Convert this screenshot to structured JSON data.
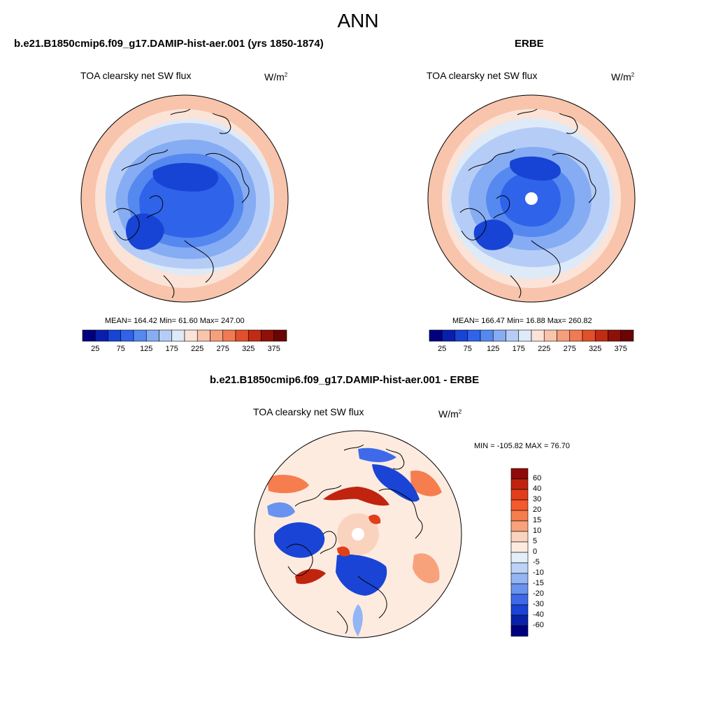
{
  "page_title": "ANN",
  "panels": [
    {
      "title": "b.e21.B1850cmip6.f09_g17.DAMIP-hist-aer.001 (yrs 1850-1874)",
      "variable": "TOA clearsky net SW flux",
      "units_base": "W/m",
      "units_exp": "2",
      "stats": "MEAN= 164.42  Min=  61.60  Max= 247.00",
      "colorbar_labels": [
        "25",
        "75",
        "125",
        "175",
        "225",
        "275",
        "325",
        "375"
      ]
    },
    {
      "title": "ERBE",
      "variable": "TOA clearsky net SW flux",
      "units_base": "W/m",
      "units_exp": "2",
      "stats": "MEAN= 166.47  Min=  16.88  Max= 260.82",
      "colorbar_labels": [
        "25",
        "75",
        "125",
        "175",
        "225",
        "275",
        "325",
        "375"
      ]
    },
    {
      "title": "b.e21.B1850cmip6.f09_g17.DAMIP-hist-aer.001 - ERBE",
      "variable": "TOA clearsky net SW flux",
      "units_base": "W/m",
      "units_exp": "2",
      "stats": "MIN = -105.82 MAX =  76.70",
      "colorbar_labels": [
        "60",
        "40",
        "30",
        "20",
        "15",
        "10",
        "5",
        "0",
        "-5",
        "-10",
        "-15",
        "-20",
        "-30",
        "-40",
        "-60"
      ]
    }
  ],
  "chart_data": [
    {
      "type": "heatmap",
      "projection": "north-polar-stereographic",
      "title": "TOA clearsky net SW flux",
      "units": "W/m^2",
      "mean": 164.42,
      "min": 61.6,
      "max": 247.0,
      "levels": [
        25,
        50,
        75,
        100,
        125,
        150,
        175,
        200,
        225,
        250,
        275,
        300,
        325,
        350,
        375
      ],
      "colors": [
        "#00007f",
        "#0a1eae",
        "#1744d4",
        "#2f63ea",
        "#5589f0",
        "#86acf3",
        "#b5cdf6",
        "#dfeaf8",
        "#fbe3d7",
        "#f8c4ac",
        "#f59f7c",
        "#f07a52",
        "#e2502b",
        "#c22b12",
        "#8f1008",
        "#6b0404"
      ]
    },
    {
      "type": "heatmap",
      "projection": "north-polar-stereographic",
      "title": "TOA clearsky net SW flux",
      "units": "W/m^2",
      "mean": 166.47,
      "min": 16.88,
      "max": 260.82,
      "levels": [
        25,
        50,
        75,
        100,
        125,
        150,
        175,
        200,
        225,
        250,
        275,
        300,
        325,
        350,
        375
      ],
      "colors": [
        "#00007f",
        "#0a1eae",
        "#1744d4",
        "#2f63ea",
        "#5589f0",
        "#86acf3",
        "#b5cdf6",
        "#dfeaf8",
        "#fbe3d7",
        "#f8c4ac",
        "#f59f7c",
        "#f07a52",
        "#e2502b",
        "#c22b12",
        "#8f1008",
        "#6b0404"
      ]
    },
    {
      "type": "heatmap",
      "projection": "north-polar-stereographic",
      "title": "TOA clearsky net SW flux",
      "units": "W/m^2",
      "min": -105.82,
      "max": 76.7,
      "levels": [
        60,
        40,
        30,
        20,
        15,
        10,
        5,
        0,
        -5,
        -10,
        -15,
        -20,
        -30,
        -40,
        -60
      ],
      "colors": [
        "#8f0a08",
        "#c0240e",
        "#e33e1a",
        "#f45a2c",
        "#f67d4e",
        "#f8a27c",
        "#fad3be",
        "#fdebe0",
        "#e3eefb",
        "#bcd3f7",
        "#94b5f3",
        "#6a92ef",
        "#3e6ae9",
        "#1a44d6",
        "#0a22aa",
        "#00007f"
      ]
    }
  ]
}
